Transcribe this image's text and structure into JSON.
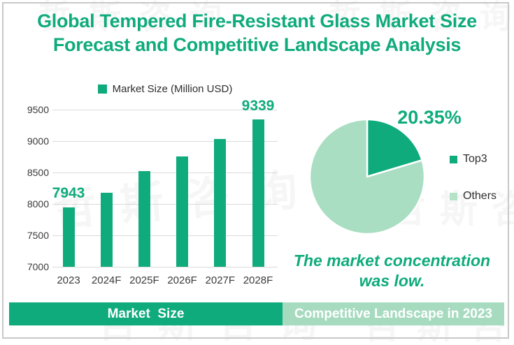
{
  "title": {
    "line1": "Global Tempered Fire-Resistant Glass Market Size",
    "line2": "Forecast and Competitive Landscape Analysis"
  },
  "chart_data": [
    {
      "type": "bar",
      "name": "market-size-forecast",
      "legend_label": "Market Size (Million USD)",
      "legend_position": "top",
      "categories": [
        "2023",
        "2024F",
        "2025F",
        "2026F",
        "2027F",
        "2028F"
      ],
      "values": [
        7943,
        8180,
        8520,
        8760,
        9030,
        9339
      ],
      "callouts": [
        {
          "index": 0,
          "text": "7943"
        },
        {
          "index": 5,
          "text": "9339"
        }
      ],
      "ylim": [
        7000,
        9500
      ],
      "yticks": [
        7000,
        7500,
        8000,
        8500,
        9000,
        9500
      ],
      "grid": true,
      "bar_color": "#0FAB7C"
    },
    {
      "type": "pie",
      "name": "competitive-landscape",
      "slices": [
        {
          "label": "Top3",
          "value": 20.35,
          "color": "#0FAB7C"
        },
        {
          "label": "Others",
          "value": 79.65,
          "color": "#A9DEC2"
        }
      ],
      "label_text": "20.35%",
      "start_angle_deg": -90,
      "direction": "clockwise",
      "legend_position": "right",
      "legend_swatch_colors": {
        "top3": "#0FAB7C",
        "others": "#B5E2C9"
      }
    }
  ],
  "annotation": {
    "line1": "The market concentration",
    "line2": "was low."
  },
  "footer": {
    "left_label": "Market  Size",
    "right_label": "Competitive Landscape in 2023"
  },
  "watermark_text": "哲斯咨询",
  "colors": {
    "accent_green": "#0FAB7C",
    "light_green": "#A9DEC2",
    "legend_light_square": "#B5E2C9",
    "footer_right_bg": "#A6DBC0",
    "gridline": "#DADADA",
    "axis_text": "#3B3B3B",
    "frame_border": "#C8C8C8"
  }
}
